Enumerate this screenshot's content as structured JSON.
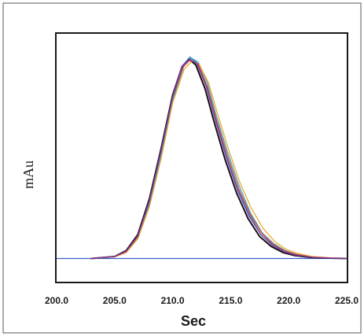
{
  "chart_data": {
    "type": "line",
    "title": "",
    "xlabel": "Sec",
    "ylabel": "mAu",
    "xlim": [
      200.0,
      225.0
    ],
    "ylim": [
      0,
      1
    ],
    "x_ticks": [
      "200.0",
      "205.0",
      "210.0",
      "215.0",
      "220.0",
      "225.0"
    ],
    "y_ticks_shown": false,
    "grid": false,
    "legend": "none",
    "baseline_color": "#3a5fcd",
    "series": [
      {
        "color": "#111111",
        "x": [
          203.0,
          205.0,
          206.0,
          207.0,
          208.0,
          209.0,
          210.0,
          210.8,
          211.4,
          212.0,
          212.8,
          213.5,
          214.5,
          215.5,
          216.5,
          217.5,
          218.5,
          219.5,
          220.5,
          222.0,
          223.5,
          225.0
        ],
        "y": [
          0.0,
          0.01,
          0.04,
          0.12,
          0.3,
          0.55,
          0.82,
          0.96,
          1.0,
          0.97,
          0.85,
          0.7,
          0.5,
          0.33,
          0.2,
          0.11,
          0.06,
          0.03,
          0.015,
          0.005,
          0.002,
          0.0
        ]
      },
      {
        "color": "#1f6fb5",
        "x": [
          203.0,
          205.0,
          206.0,
          207.0,
          208.0,
          209.0,
          210.0,
          210.9,
          211.5,
          212.1,
          212.9,
          213.6,
          214.6,
          215.6,
          216.6,
          217.6,
          218.6,
          219.6,
          220.6,
          222.0,
          223.5,
          225.0
        ],
        "y": [
          0.0,
          0.01,
          0.035,
          0.11,
          0.28,
          0.53,
          0.8,
          0.97,
          1.01,
          0.98,
          0.87,
          0.72,
          0.52,
          0.35,
          0.22,
          0.12,
          0.07,
          0.035,
          0.018,
          0.006,
          0.002,
          0.0
        ]
      },
      {
        "color": "#2aa6b8",
        "x": [
          203.0,
          205.0,
          206.0,
          207.0,
          208.0,
          209.0,
          210.0,
          211.0,
          211.6,
          212.2,
          213.0,
          213.7,
          214.7,
          215.7,
          216.7,
          217.7,
          218.7,
          219.7,
          220.7,
          222.0,
          223.5,
          225.0
        ],
        "y": [
          0.0,
          0.008,
          0.03,
          0.1,
          0.27,
          0.51,
          0.79,
          0.97,
          1.005,
          0.985,
          0.88,
          0.73,
          0.54,
          0.37,
          0.23,
          0.13,
          0.075,
          0.04,
          0.02,
          0.007,
          0.003,
          0.0
        ]
      },
      {
        "color": "#e8a21a",
        "x": [
          203.0,
          205.0,
          206.0,
          207.0,
          208.0,
          209.0,
          210.0,
          211.0,
          211.7,
          212.3,
          213.1,
          213.8,
          214.8,
          215.8,
          216.8,
          217.8,
          218.8,
          219.8,
          220.8,
          222.0,
          223.5,
          225.0
        ],
        "y": [
          0.0,
          0.008,
          0.03,
          0.1,
          0.26,
          0.5,
          0.78,
          0.95,
          0.99,
          0.97,
          0.88,
          0.74,
          0.55,
          0.38,
          0.25,
          0.15,
          0.085,
          0.045,
          0.025,
          0.01,
          0.004,
          0.0
        ]
      },
      {
        "color": "#d23b2a",
        "x": [
          203.0,
          205.0,
          206.0,
          207.0,
          208.0,
          209.0,
          210.0,
          210.9,
          211.5,
          212.2,
          213.0,
          213.7,
          214.7,
          215.7,
          216.7,
          217.7,
          218.7,
          219.7,
          220.7,
          222.0,
          223.5,
          225.0
        ],
        "y": [
          0.0,
          0.01,
          0.035,
          0.11,
          0.29,
          0.54,
          0.81,
          0.96,
          0.995,
          0.975,
          0.86,
          0.71,
          0.52,
          0.35,
          0.22,
          0.125,
          0.07,
          0.037,
          0.02,
          0.007,
          0.003,
          0.0
        ]
      },
      {
        "color": "#7a2fb0",
        "x": [
          203.0,
          205.0,
          206.0,
          207.0,
          208.0,
          209.0,
          210.0,
          210.8,
          211.5,
          212.1,
          212.9,
          213.6,
          214.6,
          215.6,
          216.6,
          217.6,
          218.6,
          219.6,
          220.6,
          222.0,
          223.5,
          225.0
        ],
        "y": [
          0.0,
          0.01,
          0.038,
          0.115,
          0.29,
          0.54,
          0.815,
          0.965,
          1.0,
          0.975,
          0.86,
          0.71,
          0.51,
          0.34,
          0.21,
          0.12,
          0.065,
          0.033,
          0.017,
          0.006,
          0.002,
          0.0
        ]
      }
    ]
  }
}
